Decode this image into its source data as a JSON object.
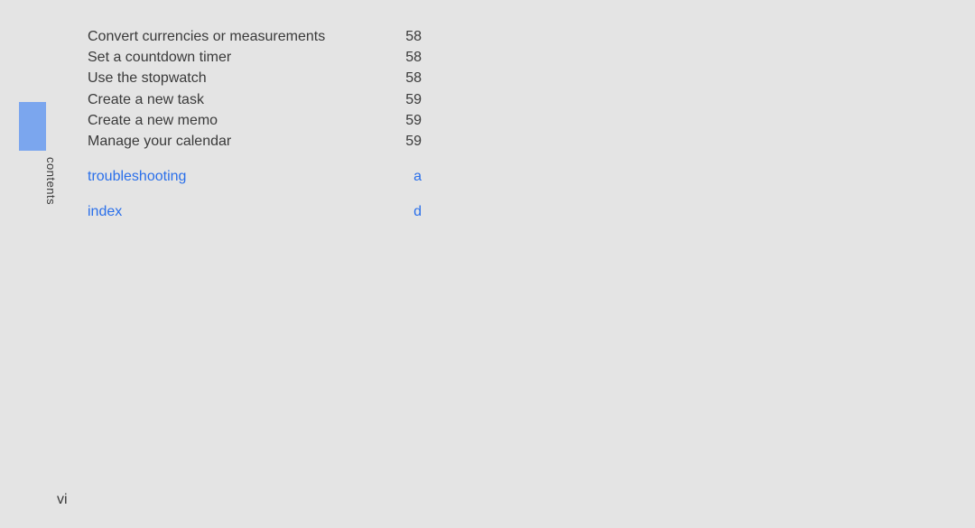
{
  "colors": {
    "background": "#e4e4e4",
    "tab": "#7ba6ee",
    "text": "#3a3a3a",
    "highlight": "#2a6fea"
  },
  "typography": {
    "body_fontsize": 16,
    "side_label_fontsize": 13,
    "font_family": "Arial"
  },
  "side_label": "contents",
  "page_number": "vi",
  "toc": {
    "entries": [
      {
        "label": "Convert currencies or measurements",
        "page": "58",
        "highlight": false
      },
      {
        "label": "Set a countdown timer",
        "page": "58",
        "highlight": false
      },
      {
        "label": "Use the stopwatch",
        "page": "58",
        "highlight": false
      },
      {
        "label": "Create a new task",
        "page": "59",
        "highlight": false
      },
      {
        "label": "Create a new memo",
        "page": "59",
        "highlight": false
      },
      {
        "label": "Manage your calendar",
        "page": "59",
        "highlight": false
      },
      {
        "label": "troubleshooting",
        "page": "a",
        "highlight": true
      },
      {
        "label": "index",
        "page": "d",
        "highlight": true
      }
    ]
  }
}
